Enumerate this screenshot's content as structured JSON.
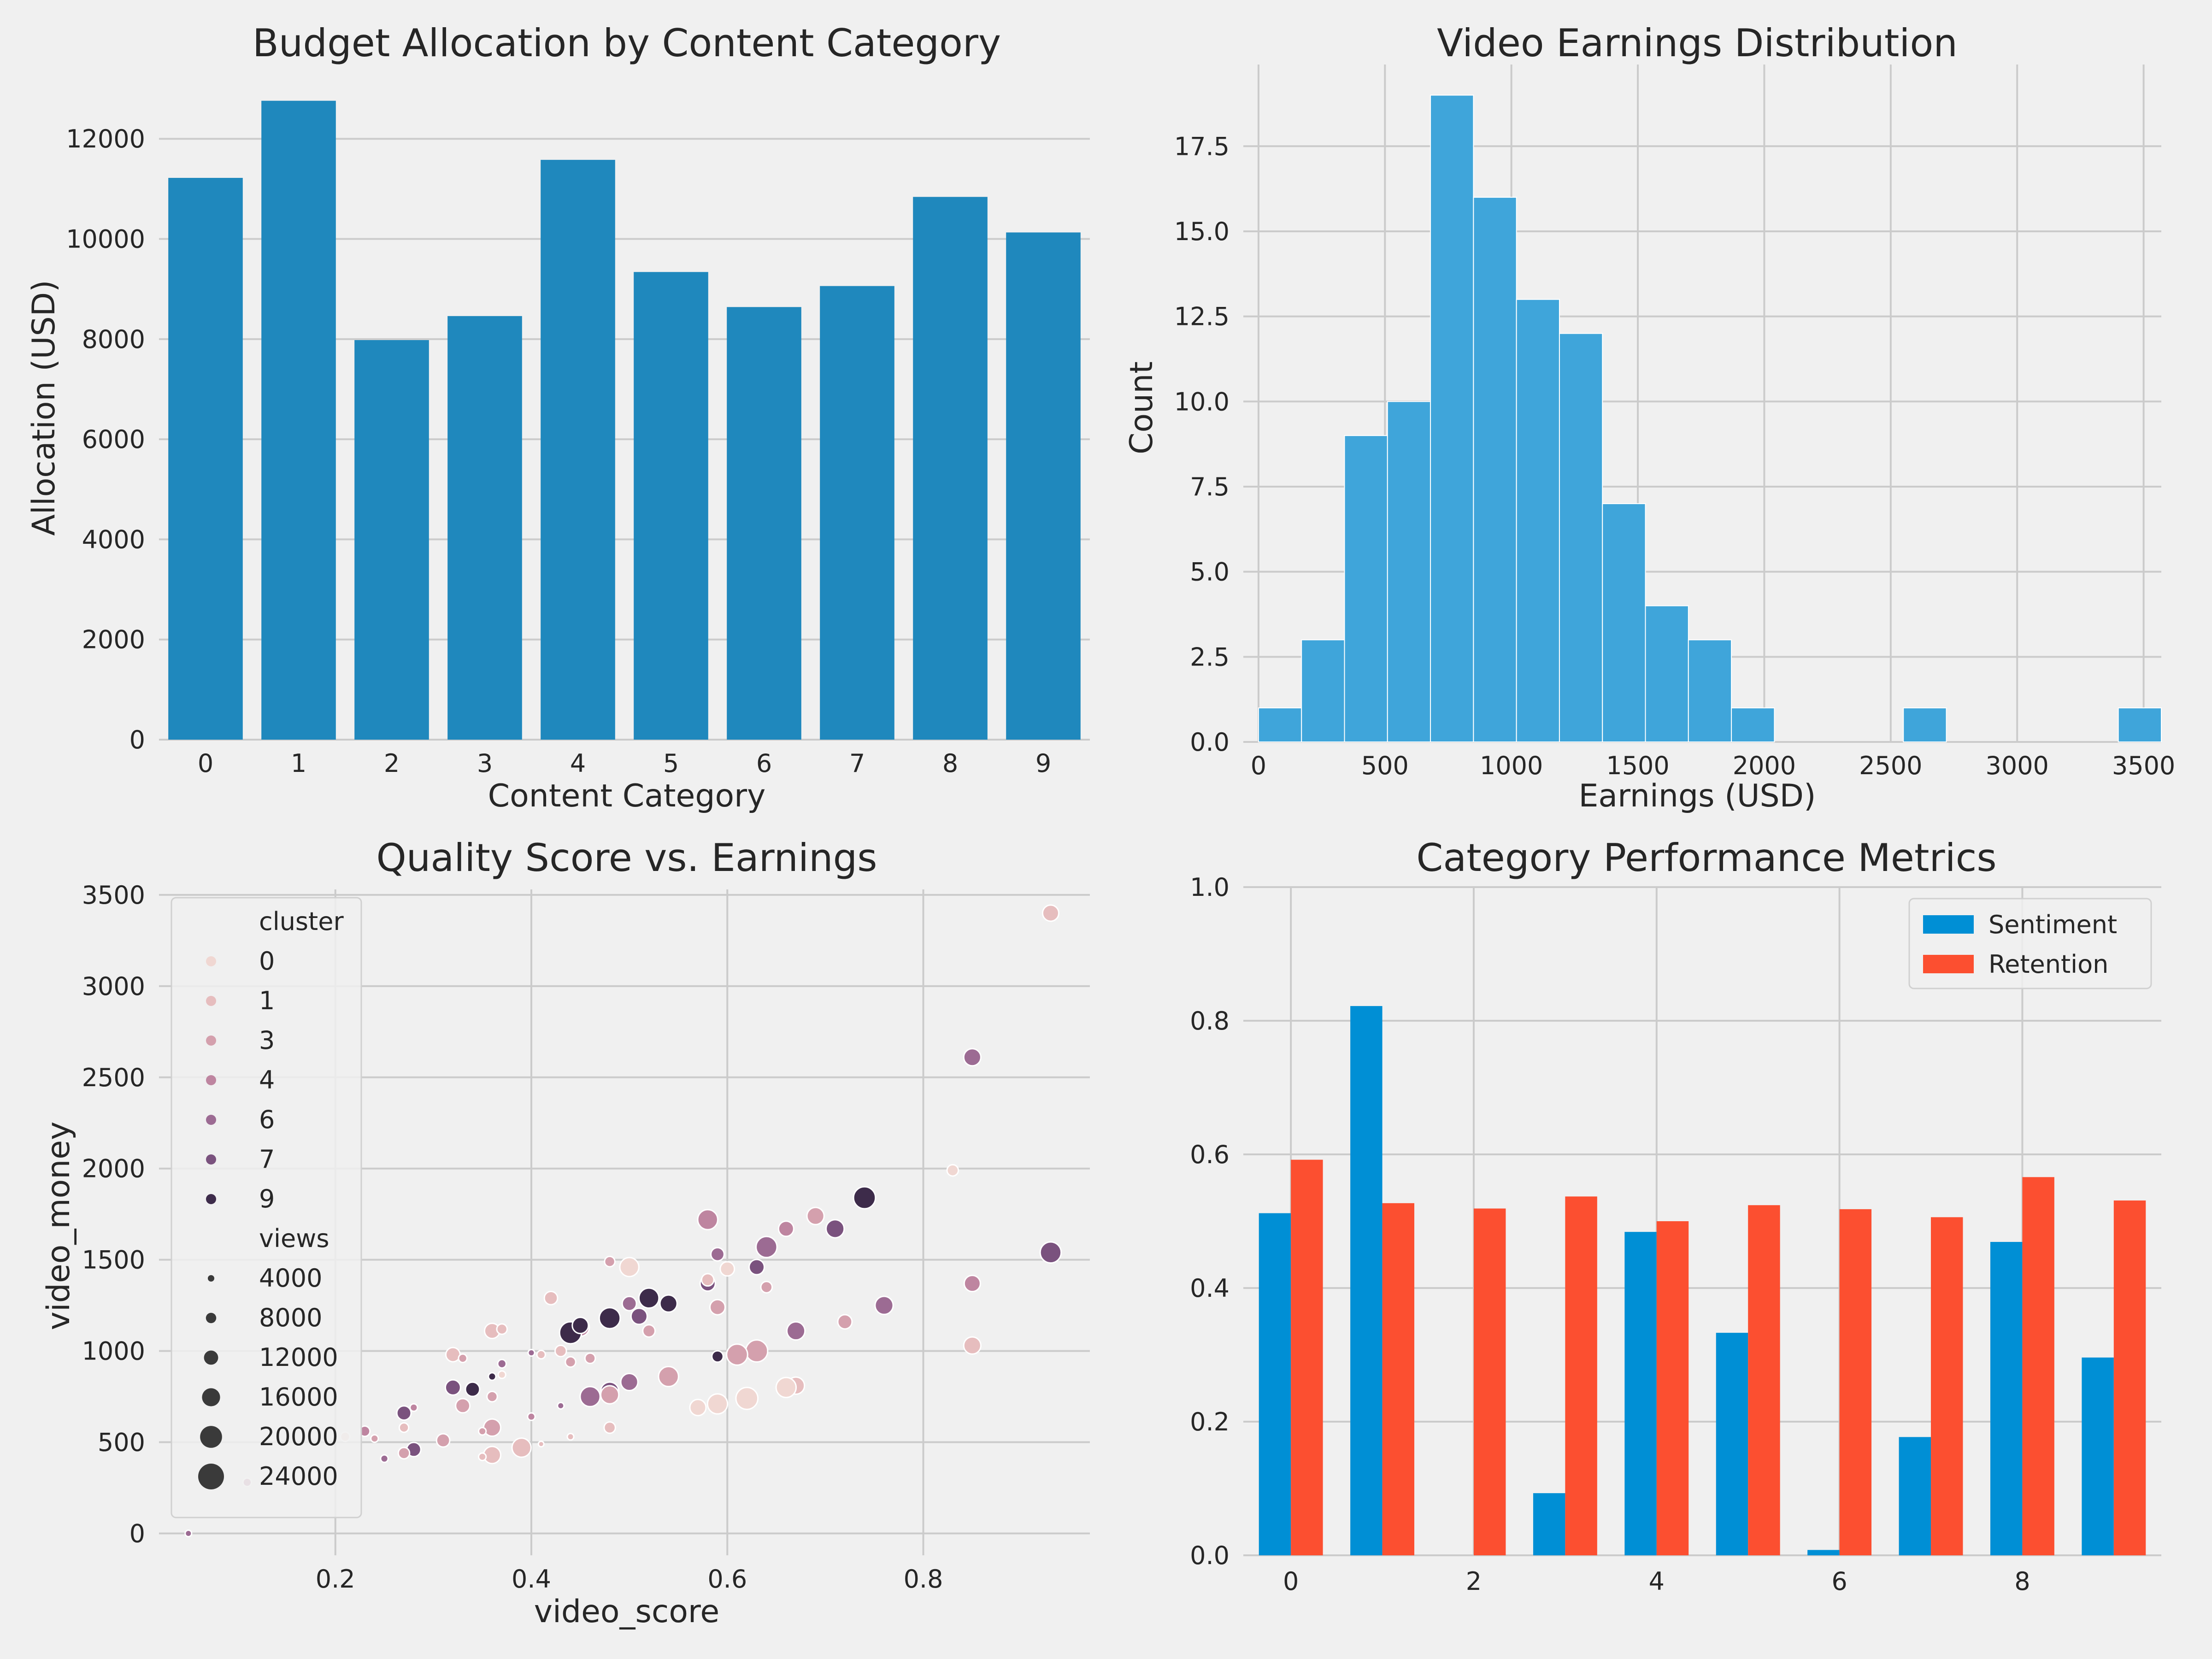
{
  "chart_data": [
    {
      "type": "bar",
      "title": "Budget Allocation by Content Category",
      "xlabel": "Content Category",
      "ylabel": "Allocation (USD)",
      "categories": [
        "0",
        "1",
        "2",
        "3",
        "4",
        "5",
        "6",
        "7",
        "8",
        "9"
      ],
      "values": [
        11220,
        12760,
        7980,
        8460,
        11580,
        9340,
        8640,
        9060,
        10840,
        10130
      ],
      "ylim": [
        0,
        13300
      ],
      "yticks": [
        0,
        2000,
        4000,
        6000,
        8000,
        10000,
        12000
      ],
      "grid": true,
      "color": "#1f88bd"
    },
    {
      "type": "histogram",
      "title": "Video Earnings Distribution",
      "xlabel": "Earnings (USD)",
      "ylabel": "Count",
      "bin_start": 0,
      "bin_width": 170,
      "counts": [
        1,
        3,
        9,
        10,
        19,
        16,
        13,
        12,
        7,
        4,
        3,
        1,
        0,
        0,
        0,
        1,
        0,
        0,
        0,
        0,
        1
      ],
      "xlim": [
        -60,
        3570
      ],
      "ylim": [
        0,
        19.9
      ],
      "xticks": [
        0,
        500,
        1000,
        1500,
        2000,
        2500,
        3000,
        3500
      ],
      "yticks": [
        0.0,
        2.5,
        5.0,
        7.5,
        10.0,
        12.5,
        15.0,
        17.5
      ],
      "grid": true,
      "color": "#3fa5da"
    },
    {
      "type": "scatter",
      "title": "Quality Score vs. Earnings",
      "xlabel": "video_score",
      "ylabel": "video_money",
      "xlim": [
        0.02,
        0.97
      ],
      "ylim": [
        -120,
        3530
      ],
      "xticks": [
        0.2,
        0.4,
        0.6,
        0.8
      ],
      "yticks": [
        0,
        500,
        1000,
        1500,
        2000,
        2500,
        3000,
        3500
      ],
      "grid": true,
      "legend_position": "top-left",
      "legend": {
        "hue_title": "cluster",
        "hue_entries": [
          {
            "label": "0",
            "color": "#f0d7d2"
          },
          {
            "label": "1",
            "color": "#e6bdbe"
          },
          {
            "label": "3",
            "color": "#d4a0ad"
          },
          {
            "label": "4",
            "color": "#be85a0"
          },
          {
            "label": "6",
            "color": "#9c6b93"
          },
          {
            "label": "7",
            "color": "#7a527e"
          },
          {
            "label": "9",
            "color": "#3d2b4a"
          }
        ],
        "size_title": "views",
        "size_entries": [
          {
            "label": "4000",
            "value": 4000
          },
          {
            "label": "8000",
            "value": 8000
          },
          {
            "label": "12000",
            "value": 12000
          },
          {
            "label": "16000",
            "value": 16000
          },
          {
            "label": "20000",
            "value": 20000
          },
          {
            "label": "24000",
            "value": 24000
          }
        ]
      },
      "points": [
        {
          "x": 0.93,
          "y": 3400,
          "c": "1",
          "v": 14000
        },
        {
          "x": 0.85,
          "y": 2610,
          "c": "6",
          "v": 15000
        },
        {
          "x": 0.83,
          "y": 1990,
          "c": "0",
          "v": 9000
        },
        {
          "x": 0.93,
          "y": 1540,
          "c": "7",
          "v": 19000
        },
        {
          "x": 0.85,
          "y": 1370,
          "c": "4",
          "v": 14000
        },
        {
          "x": 0.85,
          "y": 1030,
          "c": "1",
          "v": 15000
        },
        {
          "x": 0.74,
          "y": 1840,
          "c": "9",
          "v": 20000
        },
        {
          "x": 0.71,
          "y": 1670,
          "c": "7",
          "v": 16000
        },
        {
          "x": 0.76,
          "y": 1250,
          "c": "6",
          "v": 16000
        },
        {
          "x": 0.72,
          "y": 1160,
          "c": "3",
          "v": 12000
        },
        {
          "x": 0.69,
          "y": 1740,
          "c": "3",
          "v": 15000
        },
        {
          "x": 0.66,
          "y": 1670,
          "c": "4",
          "v": 13000
        },
        {
          "x": 0.67,
          "y": 1110,
          "c": "6",
          "v": 16000
        },
        {
          "x": 0.67,
          "y": 810,
          "c": "1",
          "v": 15000
        },
        {
          "x": 0.66,
          "y": 800,
          "c": "0",
          "v": 18000
        },
        {
          "x": 0.64,
          "y": 1570,
          "c": "6",
          "v": 19000
        },
        {
          "x": 0.64,
          "y": 1350,
          "c": "3",
          "v": 9000
        },
        {
          "x": 0.63,
          "y": 1460,
          "c": "7",
          "v": 13000
        },
        {
          "x": 0.63,
          "y": 1000,
          "c": "3",
          "v": 20000
        },
        {
          "x": 0.62,
          "y": 740,
          "c": "0",
          "v": 20000
        },
        {
          "x": 0.61,
          "y": 980,
          "c": "3",
          "v": 19000
        },
        {
          "x": 0.59,
          "y": 1530,
          "c": "6",
          "v": 11000
        },
        {
          "x": 0.59,
          "y": 1240,
          "c": "3",
          "v": 13000
        },
        {
          "x": 0.58,
          "y": 1720,
          "c": "4",
          "v": 18000
        },
        {
          "x": 0.58,
          "y": 1370,
          "c": "7",
          "v": 13000
        },
        {
          "x": 0.59,
          "y": 970,
          "c": "9",
          "v": 9000
        },
        {
          "x": 0.59,
          "y": 710,
          "c": "0",
          "v": 18000
        },
        {
          "x": 0.57,
          "y": 690,
          "c": "0",
          "v": 14000
        },
        {
          "x": 0.6,
          "y": 1450,
          "c": "0",
          "v": 12000
        },
        {
          "x": 0.58,
          "y": 1390,
          "c": "1",
          "v": 10000
        },
        {
          "x": 0.54,
          "y": 1260,
          "c": "9",
          "v": 15000
        },
        {
          "x": 0.52,
          "y": 1290,
          "c": "9",
          "v": 18000
        },
        {
          "x": 0.52,
          "y": 1110,
          "c": "3",
          "v": 10000
        },
        {
          "x": 0.51,
          "y": 1190,
          "c": "7",
          "v": 14000
        },
        {
          "x": 0.5,
          "y": 1260,
          "c": "6",
          "v": 12000
        },
        {
          "x": 0.5,
          "y": 1460,
          "c": "0",
          "v": 17000
        },
        {
          "x": 0.48,
          "y": 1490,
          "c": "3",
          "v": 8000
        },
        {
          "x": 0.48,
          "y": 1180,
          "c": "9",
          "v": 19000
        },
        {
          "x": 0.45,
          "y": 1130,
          "c": "4",
          "v": 16000
        },
        {
          "x": 0.44,
          "y": 1100,
          "c": "9",
          "v": 20000
        },
        {
          "x": 0.45,
          "y": 1140,
          "c": "9",
          "v": 14000
        },
        {
          "x": 0.54,
          "y": 860,
          "c": "3",
          "v": 18000
        },
        {
          "x": 0.5,
          "y": 830,
          "c": "6",
          "v": 15000
        },
        {
          "x": 0.48,
          "y": 780,
          "c": "7",
          "v": 16000
        },
        {
          "x": 0.48,
          "y": 760,
          "c": "3",
          "v": 16000
        },
        {
          "x": 0.46,
          "y": 750,
          "c": "6",
          "v": 18000
        },
        {
          "x": 0.46,
          "y": 960,
          "c": "3",
          "v": 8000
        },
        {
          "x": 0.44,
          "y": 940,
          "c": "3",
          "v": 8000
        },
        {
          "x": 0.43,
          "y": 1000,
          "c": "1",
          "v": 9000
        },
        {
          "x": 0.42,
          "y": 1290,
          "c": "1",
          "v": 11000
        },
        {
          "x": 0.43,
          "y": 700,
          "c": "6",
          "v": 4000
        },
        {
          "x": 0.48,
          "y": 580,
          "c": "1",
          "v": 9000
        },
        {
          "x": 0.41,
          "y": 980,
          "c": "1",
          "v": 6000
        },
        {
          "x": 0.4,
          "y": 990,
          "c": "6",
          "v": 4000
        },
        {
          "x": 0.36,
          "y": 1110,
          "c": "1",
          "v": 13000
        },
        {
          "x": 0.37,
          "y": 1120,
          "c": "1",
          "v": 8000
        },
        {
          "x": 0.37,
          "y": 930,
          "c": "6",
          "v": 6000
        },
        {
          "x": 0.36,
          "y": 860,
          "c": "9",
          "v": 5000
        },
        {
          "x": 0.37,
          "y": 870,
          "c": "0",
          "v": 5000
        },
        {
          "x": 0.36,
          "y": 750,
          "c": "3",
          "v": 8000
        },
        {
          "x": 0.34,
          "y": 790,
          "c": "9",
          "v": 12000
        },
        {
          "x": 0.32,
          "y": 800,
          "c": "7",
          "v": 13000
        },
        {
          "x": 0.32,
          "y": 980,
          "c": "1",
          "v": 12000
        },
        {
          "x": 0.33,
          "y": 960,
          "c": "3",
          "v": 6000
        },
        {
          "x": 0.33,
          "y": 700,
          "c": "3",
          "v": 12000
        },
        {
          "x": 0.36,
          "y": 580,
          "c": "3",
          "v": 15000
        },
        {
          "x": 0.39,
          "y": 470,
          "c": "1",
          "v": 17000
        },
        {
          "x": 0.36,
          "y": 430,
          "c": "1",
          "v": 15000
        },
        {
          "x": 0.35,
          "y": 420,
          "c": "1",
          "v": 5000
        },
        {
          "x": 0.35,
          "y": 560,
          "c": "3",
          "v": 5000
        },
        {
          "x": 0.31,
          "y": 510,
          "c": "3",
          "v": 11000
        },
        {
          "x": 0.4,
          "y": 640,
          "c": "4",
          "v": 5000
        },
        {
          "x": 0.44,
          "y": 530,
          "c": "1",
          "v": 4000
        },
        {
          "x": 0.41,
          "y": 490,
          "c": "1",
          "v": 3000
        },
        {
          "x": 0.27,
          "y": 660,
          "c": "7",
          "v": 12000
        },
        {
          "x": 0.28,
          "y": 690,
          "c": "4",
          "v": 5000
        },
        {
          "x": 0.27,
          "y": 580,
          "c": "1",
          "v": 7000
        },
        {
          "x": 0.28,
          "y": 460,
          "c": "7",
          "v": 12000
        },
        {
          "x": 0.27,
          "y": 440,
          "c": "3",
          "v": 9000
        },
        {
          "x": 0.25,
          "y": 410,
          "c": "6",
          "v": 5000
        },
        {
          "x": 0.24,
          "y": 520,
          "c": "3",
          "v": 5000
        },
        {
          "x": 0.23,
          "y": 560,
          "c": "4",
          "v": 8000
        },
        {
          "x": 0.21,
          "y": 530,
          "c": "0",
          "v": 7000
        },
        {
          "x": 0.11,
          "y": 280,
          "c": "4",
          "v": 6000
        },
        {
          "x": 0.05,
          "y": 0,
          "c": "6",
          "v": 4000
        }
      ]
    },
    {
      "type": "bar",
      "title": "Category Performance Metrics",
      "xlabel": "",
      "ylabel": "",
      "categories": [
        0,
        1,
        2,
        3,
        4,
        5,
        6,
        7,
        8,
        9
      ],
      "series": [
        {
          "name": "Sentiment",
          "color": "#008fd5",
          "values": [
            0.512,
            0.822,
            0.0,
            0.093,
            0.484,
            0.333,
            0.008,
            0.177,
            0.469,
            0.296
          ]
        },
        {
          "name": "Retention",
          "color": "#fc4f30",
          "values": [
            0.592,
            0.527,
            0.519,
            0.537,
            0.5,
            0.524,
            0.518,
            0.506,
            0.566,
            0.531
          ]
        }
      ],
      "xlim": [
        -0.52,
        9.52
      ],
      "ylim": [
        0,
        1.0
      ],
      "xticks": [
        0,
        2,
        4,
        6,
        8
      ],
      "yticks": [
        0.0,
        0.2,
        0.4,
        0.6,
        0.8,
        1.0
      ],
      "grid": true,
      "legend_position": "top-right"
    }
  ]
}
